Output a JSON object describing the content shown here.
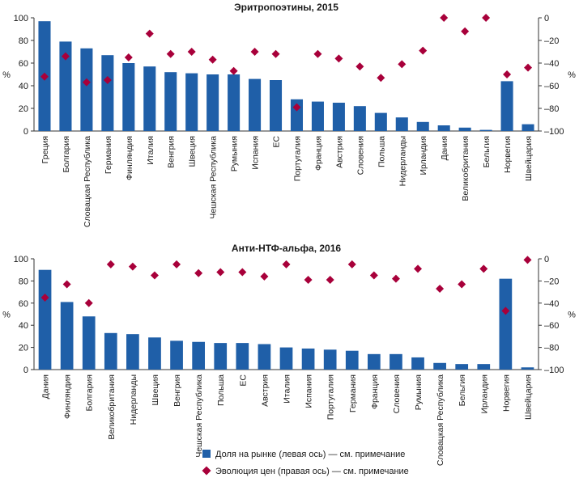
{
  "chart_data": [
    {
      "type": "bar",
      "title": "Эритропоэтины, 2015",
      "ylabel_left": "%",
      "ylabel_right": "%",
      "ylim_left": [
        0,
        100
      ],
      "ylim_right": [
        -100,
        0
      ],
      "yticks_left": [
        "0",
        "20",
        "40",
        "60",
        "80",
        "100"
      ],
      "yticks_right": [
        "–100",
        "–80",
        "–60",
        "–40",
        "–20",
        "0"
      ],
      "categories": [
        "Греция",
        "Болгария",
        "Словацкая Республика",
        "Германия",
        "Финляндия",
        "Италия",
        "Венгрия",
        "Швеция",
        "Чешская Республика",
        "Румыния",
        "Испания",
        "ЕС",
        "Португалия",
        "Франция",
        "Австрия",
        "Словения",
        "Польша",
        "Нидерланды",
        "Ирландия",
        "Дания",
        "Великобритания",
        "Бельгия",
        "Норвегия",
        "Швейцария"
      ],
      "series": [
        {
          "name": "Доля на рынке (левая ось) — см. примечание",
          "axis": "left",
          "kind": "bar",
          "color": "#1f5fa8",
          "values": [
            97,
            79,
            73,
            67,
            60,
            57,
            52,
            51,
            50,
            50,
            46,
            45,
            28,
            26,
            25,
            22,
            16,
            12,
            8,
            5,
            3,
            1,
            44,
            6
          ]
        },
        {
          "name": "Эволюция цен (правая ось) — см. примечание",
          "axis": "right",
          "kind": "marker",
          "color": "#a8003a",
          "values": [
            -52,
            -34,
            -57,
            -55,
            -35,
            -14,
            -32,
            -30,
            -37,
            -47,
            -30,
            -32,
            -79,
            -32,
            -36,
            -43,
            -53,
            -41,
            -29,
            0,
            -12,
            0,
            -50,
            -44
          ]
        }
      ]
    },
    {
      "type": "bar",
      "title": "Анти-НТФ-альфа, 2016",
      "ylabel_left": "%",
      "ylabel_right": "%",
      "ylim_left": [
        0,
        100
      ],
      "ylim_right": [
        -100,
        0
      ],
      "yticks_left": [
        "0",
        "20",
        "40",
        "60",
        "80",
        "100"
      ],
      "yticks_right": [
        "–100",
        "–80",
        "–60",
        "–40",
        "–20",
        "0"
      ],
      "categories": [
        "Дания",
        "Финляндия",
        "Болгария",
        "Великобритания",
        "Нидерланды",
        "Швеция",
        "Венгрия",
        "Чешская Республика",
        "Польша",
        "ЕС",
        "Австрия",
        "Италия",
        "Испания",
        "Португалия",
        "Германия",
        "Франция",
        "Словения",
        "Румыния",
        "Словацкая Республика",
        "Бельгия",
        "Ирландия",
        "Норвегия",
        "Швейцария"
      ],
      "series": [
        {
          "name": "Доля на рынке (левая ось) — см. примечание",
          "axis": "left",
          "kind": "bar",
          "color": "#1f5fa8",
          "values": [
            90,
            61,
            48,
            33,
            32,
            29,
            26,
            25,
            24,
            24,
            23,
            20,
            19,
            18,
            17,
            14,
            14,
            11,
            6,
            5,
            5,
            82,
            2
          ]
        },
        {
          "name": "Эволюция цен (правая ось) — см. примечание",
          "axis": "right",
          "kind": "marker",
          "color": "#a8003a",
          "values": [
            -35,
            -23,
            -40,
            -5,
            -7,
            -15,
            -5,
            -13,
            -12,
            -12,
            -16,
            -5,
            -19,
            -19,
            -5,
            -15,
            -18,
            -9,
            -27,
            -23,
            -9,
            -47,
            -1
          ]
        }
      ]
    }
  ],
  "legend": {
    "position": "bottom-center",
    "items": [
      {
        "label": "Доля на рынке (левая ось) — см. примечание",
        "kind": "bar",
        "color": "#1f5fa8"
      },
      {
        "label": "Эволюция цен (правая ось) — см. примечание",
        "kind": "marker",
        "color": "#a8003a"
      }
    ]
  }
}
